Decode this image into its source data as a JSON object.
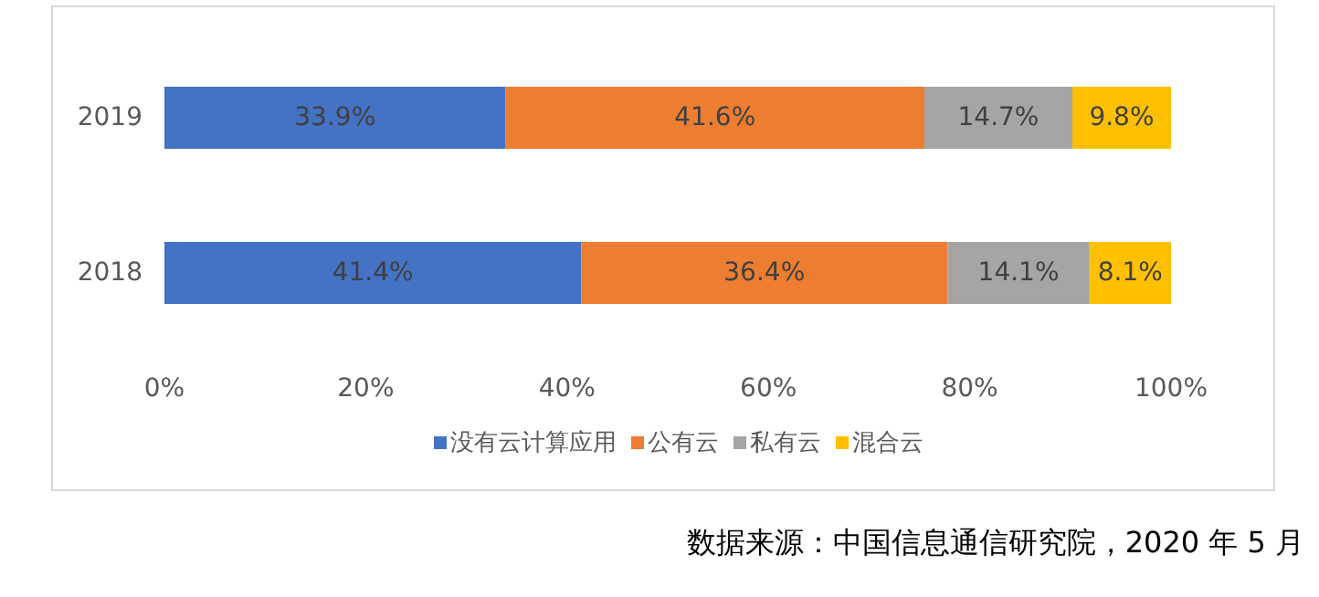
{
  "chart_data": {
    "type": "bar",
    "orientation": "horizontal",
    "stacked": true,
    "categories": [
      "2019",
      "2018"
    ],
    "series": [
      {
        "name": "没有云计算应用",
        "color": "#4472c4",
        "values": [
          33.9,
          41.4
        ],
        "value_labels": [
          "33.9%",
          "41.4%"
        ]
      },
      {
        "name": "公有云",
        "color": "#ed7d31",
        "values": [
          41.6,
          36.4
        ],
        "value_labels": [
          "41.6%",
          "36.4%"
        ]
      },
      {
        "name": "私有云",
        "color": "#a5a5a5",
        "values": [
          14.7,
          14.1
        ],
        "value_labels": [
          "14.7%",
          "14.1%"
        ]
      },
      {
        "name": "混合云",
        "color": "#ffc000",
        "values": [
          9.8,
          8.1
        ],
        "value_labels": [
          "9.8%",
          "8.1%"
        ]
      }
    ],
    "xlim": [
      0,
      100
    ],
    "xticks": [
      {
        "value": 0,
        "label": "0%"
      },
      {
        "value": 20,
        "label": "20%"
      },
      {
        "value": 40,
        "label": "40%"
      },
      {
        "value": 60,
        "label": "60%"
      },
      {
        "value": 80,
        "label": "80%"
      },
      {
        "value": 100,
        "label": "100%"
      }
    ],
    "legend": "bottom",
    "grid": false,
    "annotations": [
      "数据来源：中国信息通信研究院，2020 年 5 月"
    ]
  }
}
